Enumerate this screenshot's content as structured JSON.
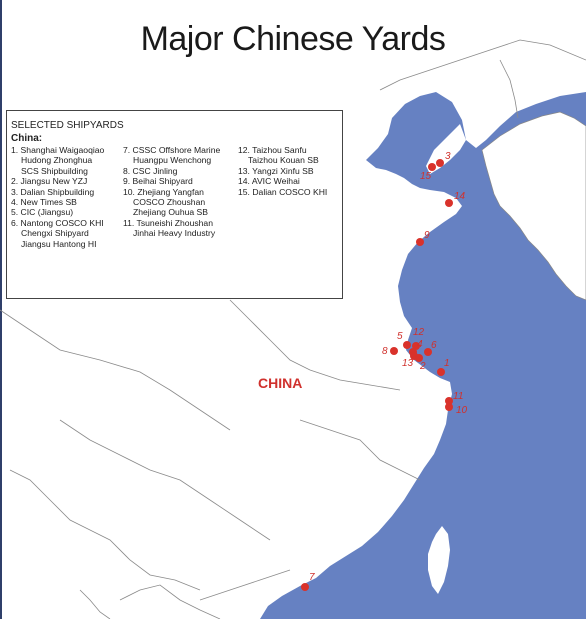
{
  "title": "Major Chinese Yards",
  "legend": {
    "heading": "SELECTED SHIPYARDS",
    "country": "China:",
    "columns": [
      [
        {
          "text": "1. Shanghai Waigaoqiao",
          "sub": false
        },
        {
          "text": "Hudong Zhonghua",
          "sub": true
        },
        {
          "text": "SCS Shipbuilding",
          "sub": true
        },
        {
          "text": "2. Jiangsu New YZJ",
          "sub": false
        },
        {
          "text": "3. Dalian Shipbuilding",
          "sub": false
        },
        {
          "text": "4. New Times SB",
          "sub": false
        },
        {
          "text": "5. CIC (Jiangsu)",
          "sub": false
        },
        {
          "text": "6. Nantong COSCO KHI",
          "sub": false
        },
        {
          "text": "Chengxi Shipyard",
          "sub": true
        },
        {
          "text": "Jiangsu Hantong HI",
          "sub": true
        }
      ],
      [
        {
          "text": "7. CSSC Offshore Marine",
          "sub": false
        },
        {
          "text": "Huangpu Wenchong",
          "sub": true
        },
        {
          "text": "8. CSC Jinling",
          "sub": false
        },
        {
          "text": "9. Beihai Shipyard",
          "sub": false
        },
        {
          "text": "10. Zhejiang Yangfan",
          "sub": false
        },
        {
          "text": "COSCO Zhoushan",
          "sub": true
        },
        {
          "text": "Zhejiang Ouhua SB",
          "sub": true
        },
        {
          "text": "11. Tsuneishi Zhoushan",
          "sub": false
        },
        {
          "text": "Jinhai Heavy Industry",
          "sub": true
        }
      ],
      [
        {
          "text": "12. Taizhou Sanfu",
          "sub": false
        },
        {
          "text": "Taizhou Kouan SB",
          "sub": true
        },
        {
          "text": "13. Yangzi Xinfu SB",
          "sub": false
        },
        {
          "text": "14. AVIC Weihai",
          "sub": false
        },
        {
          "text": "15. Dalian COSCO KHI",
          "sub": false
        }
      ]
    ]
  },
  "map": {
    "country_label": "CHINA",
    "colors": {
      "sea": "#6681c2",
      "land": "#ffffff",
      "border": "#777777",
      "marker": "#d9322b",
      "label": "#d0312d"
    },
    "markers": [
      "15",
      "3",
      "14",
      "9",
      "5",
      "12",
      "8",
      "4",
      "6",
      "13",
      "2",
      "1",
      "11",
      "10",
      "7"
    ]
  }
}
